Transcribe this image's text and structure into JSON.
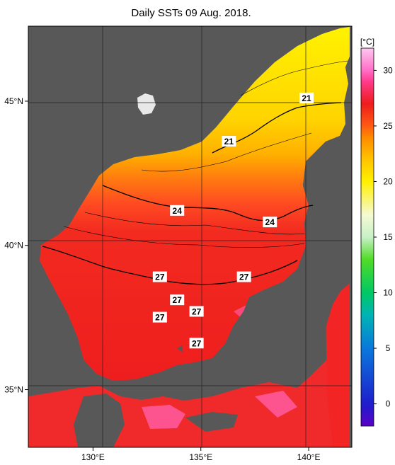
{
  "chart_data": {
    "type": "heatmap",
    "title": "Daily SSTs 09 Aug. 2018.",
    "colorbar": {
      "unit": "[°C]",
      "range": [
        -2,
        32
      ],
      "ticks": [
        0,
        5,
        10,
        15,
        20,
        25,
        30
      ],
      "stops": [
        {
          "v": -2,
          "color": "#5a00c8"
        },
        {
          "v": 0,
          "color": "#1e1ecc"
        },
        {
          "v": 5,
          "color": "#0a78dc"
        },
        {
          "v": 8,
          "color": "#00b4b4"
        },
        {
          "v": 10,
          "color": "#00c864"
        },
        {
          "v": 13,
          "color": "#50dc28"
        },
        {
          "v": 15,
          "color": "#c8f0c8"
        },
        {
          "v": 17,
          "color": "#f5fad2"
        },
        {
          "v": 20,
          "color": "#fff000"
        },
        {
          "v": 22,
          "color": "#ffc400"
        },
        {
          "v": 24,
          "color": "#ff8a00"
        },
        {
          "v": 25,
          "color": "#ff5a14"
        },
        {
          "v": 27,
          "color": "#ee1c1c"
        },
        {
          "v": 29,
          "color": "#ff3a8c"
        },
        {
          "v": 30,
          "color": "#ff6ec8"
        },
        {
          "v": 32,
          "color": "#ffc8f0"
        }
      ]
    },
    "xaxis": {
      "range": [
        127,
        142
      ],
      "ticks": [
        130,
        135,
        140
      ],
      "tick_labels": [
        "130°E",
        "135°E",
        "140°E"
      ]
    },
    "yaxis": {
      "range": [
        33,
        47.6
      ],
      "ticks": [
        35,
        40,
        45
      ],
      "tick_labels": [
        "35°N",
        "40°N",
        "45°N"
      ]
    },
    "grid": true,
    "contour_labels": [
      {
        "value": "21",
        "lon": 139.9,
        "lat": 45.1
      },
      {
        "value": "21",
        "lon": 136.3,
        "lat": 43.6
      },
      {
        "value": "24",
        "lon": 133.9,
        "lat": 41.2
      },
      {
        "value": "24",
        "lon": 138.2,
        "lat": 40.8
      },
      {
        "value": "27",
        "lon": 133.1,
        "lat": 38.9
      },
      {
        "value": "27",
        "lon": 137.0,
        "lat": 38.9
      },
      {
        "value": "27",
        "lon": 133.9,
        "lat": 38.1
      },
      {
        "value": "27",
        "lon": 134.8,
        "lat": 37.7
      },
      {
        "value": "27",
        "lon": 133.1,
        "lat": 37.5
      },
      {
        "value": "27",
        "lon": 134.8,
        "lat": 36.6
      }
    ],
    "colors": {
      "land": "#585858",
      "frame": "#000000",
      "contour": "#000000",
      "grid": "#222222"
    }
  }
}
